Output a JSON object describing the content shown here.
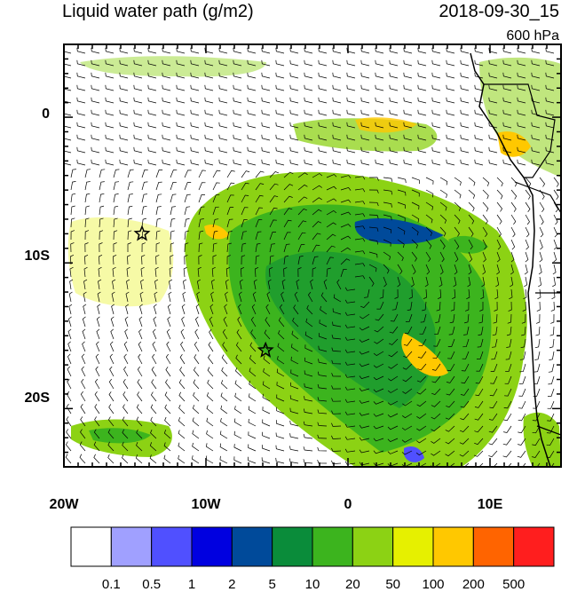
{
  "header": {
    "title": "Liquid water path (g/m2)",
    "datetime": "2018-09-30_15",
    "level": "600 hPa"
  },
  "axes": {
    "lat_labels": [
      {
        "label": "0",
        "lat": 0
      },
      {
        "label": "10S",
        "lat": -10
      },
      {
        "label": "20S",
        "lat": -20
      }
    ],
    "lon_labels": [
      {
        "label": "20W",
        "lon": -20
      },
      {
        "label": "10W",
        "lon": -10
      },
      {
        "label": "0",
        "lon": 0
      },
      {
        "label": "10E",
        "lon": 10
      }
    ],
    "lon_range": [
      -20,
      15
    ],
    "lat_range": [
      -24,
      5
    ]
  },
  "colorbar": {
    "labels": [
      "0.1",
      "0.5",
      "1",
      "2",
      "5",
      "10",
      "20",
      "50",
      "100",
      "200",
      "500"
    ],
    "colors": [
      "#ffffff",
      "#a0a0ff",
      "#5050ff",
      "#0000e0",
      "#004a9a",
      "#0a8c3a",
      "#3cb41e",
      "#8cd214",
      "#e6f000",
      "#ffc800",
      "#ff6400",
      "#ff1e1e"
    ]
  },
  "markers": [
    {
      "name": "star-marker-1",
      "lon": -14.5,
      "lat": -8
    },
    {
      "name": "star-marker-2",
      "lon": -5.8,
      "lat": -16
    }
  ]
}
